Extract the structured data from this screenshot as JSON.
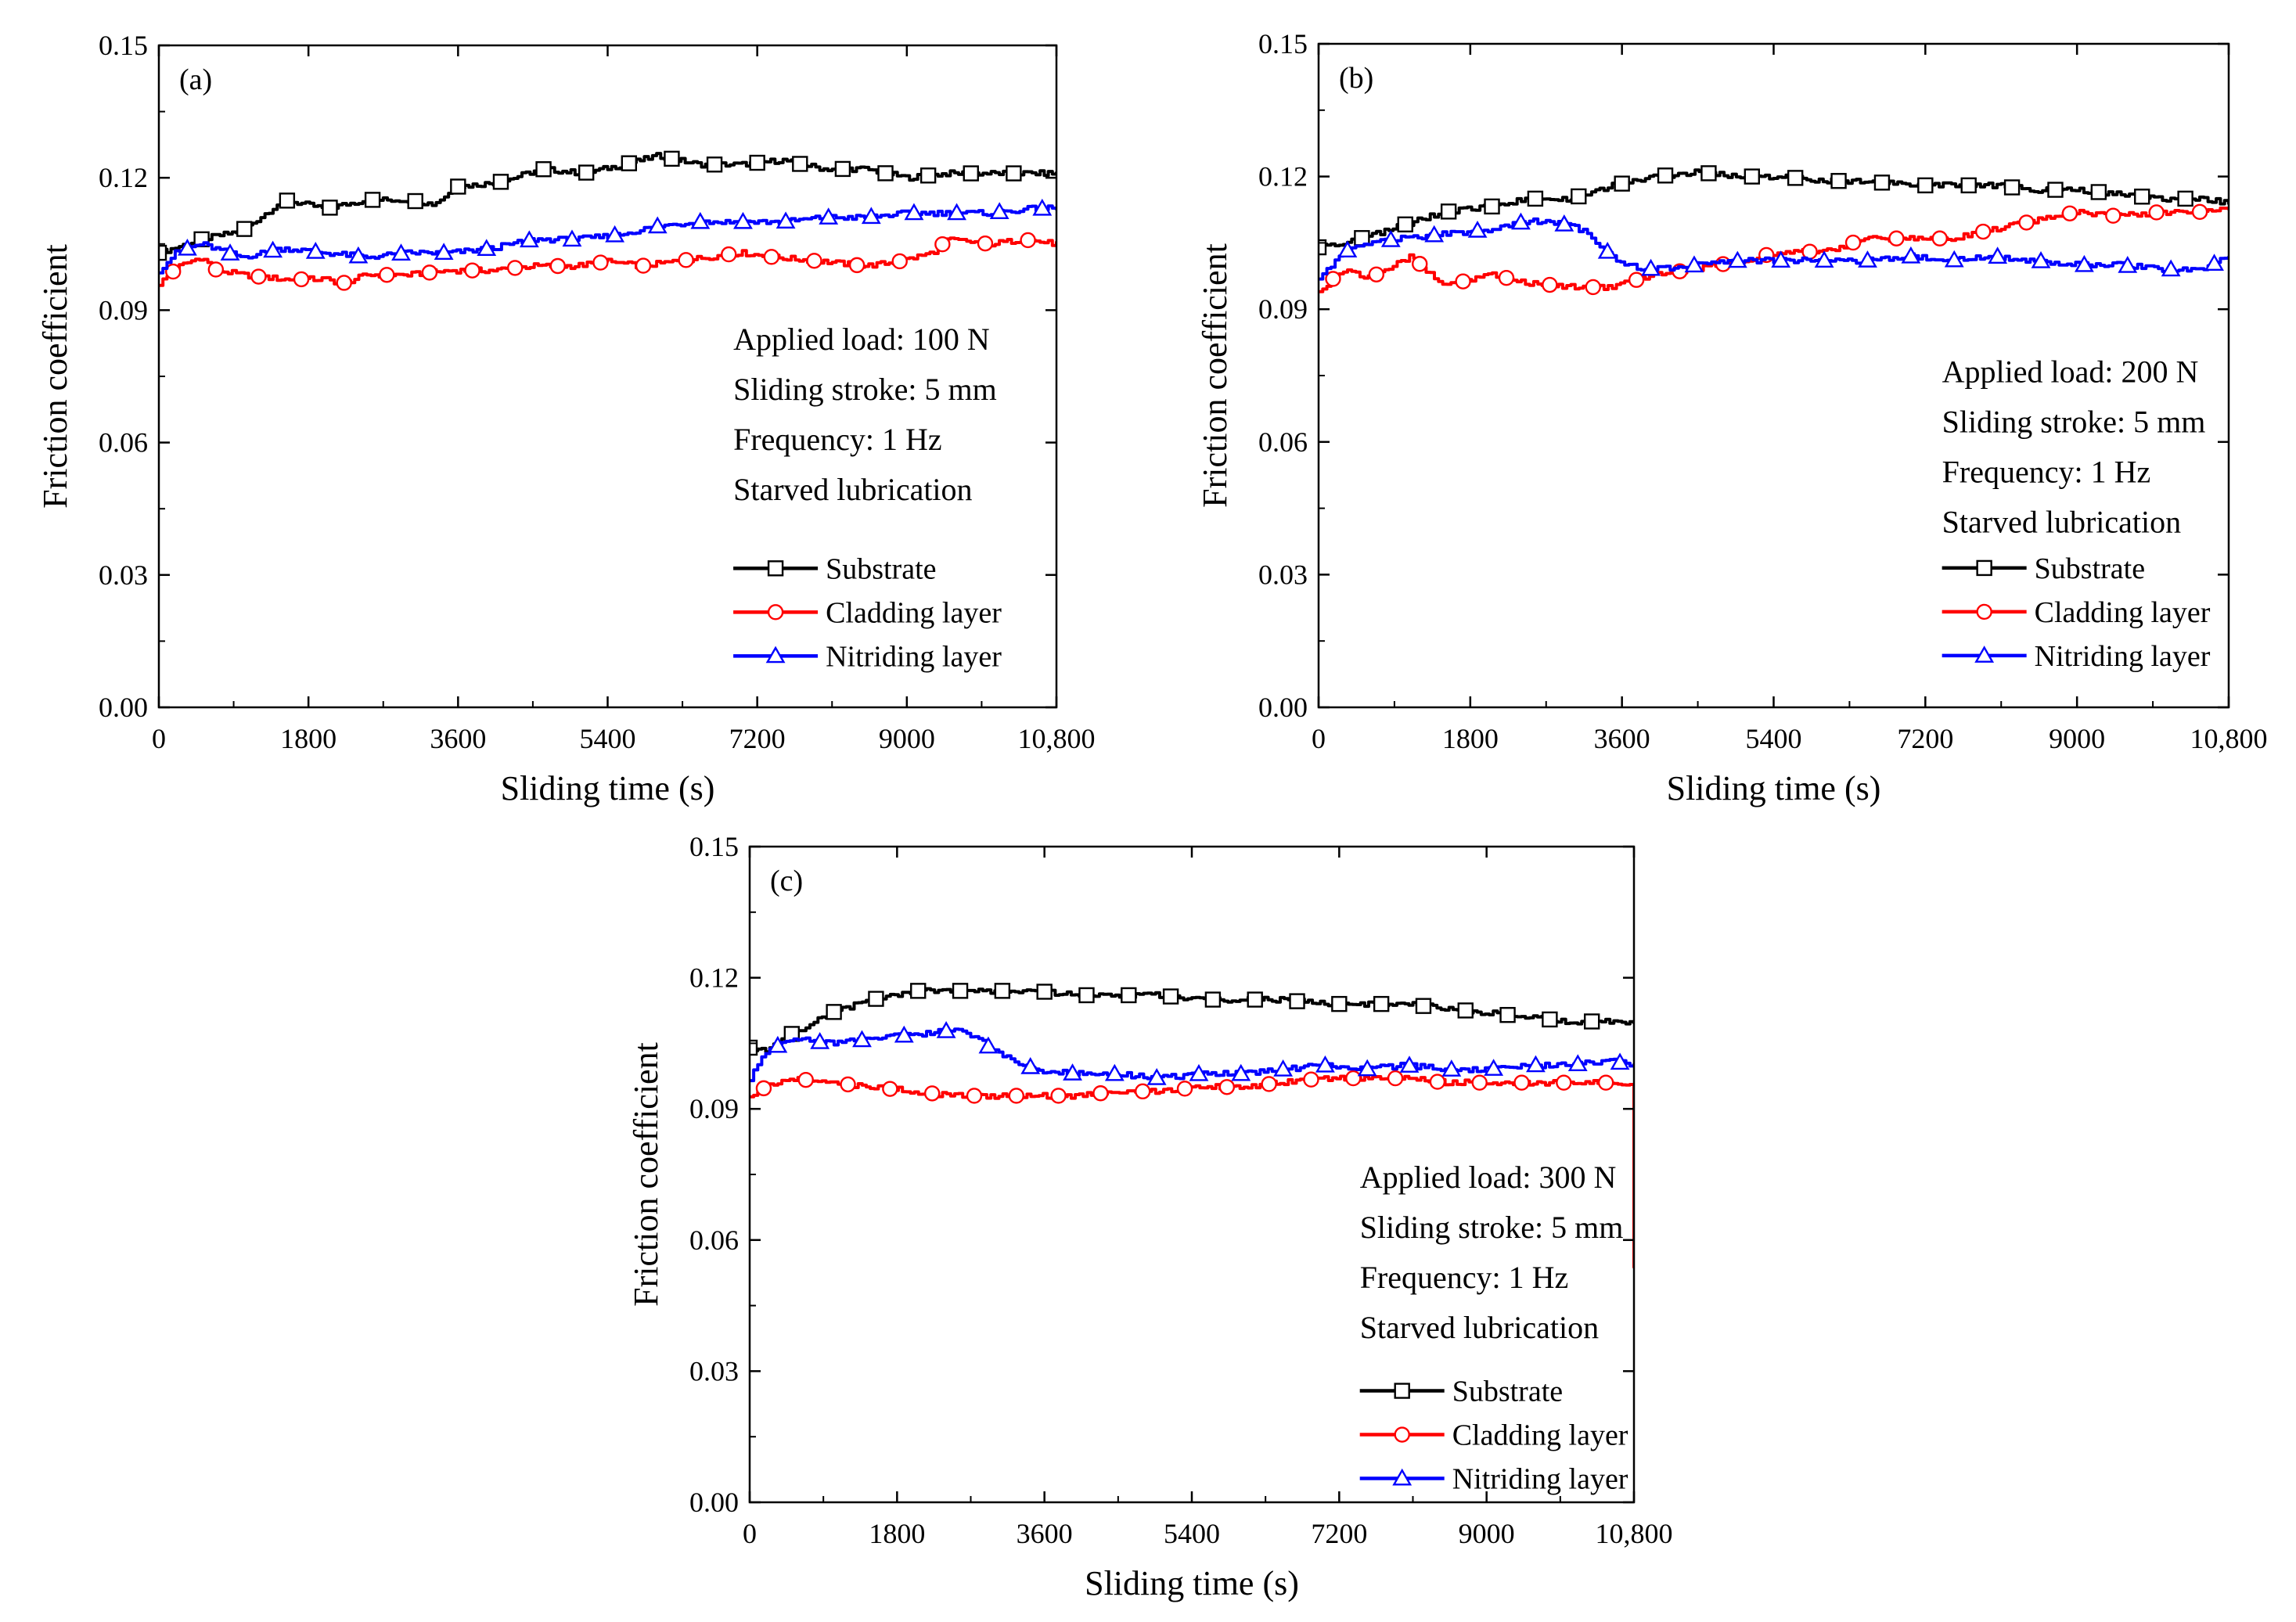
{
  "figure": {
    "colors": {
      "substrate": "#000000",
      "cladding": "#ff0000",
      "nitriding": "#0000ff",
      "axis": "#000000",
      "background": "#ffffff"
    }
  },
  "chart_data": [
    {
      "type": "line",
      "panel": "(a)",
      "xlabel": "Sliding time (s)",
      "ylabel": "Friction coefficient",
      "xlim": [
        0,
        10800
      ],
      "ylim": [
        0,
        0.15
      ],
      "xticks": [
        0,
        1800,
        3600,
        5400,
        7200,
        9000,
        10800
      ],
      "xtick_labels": [
        "0",
        "1800",
        "3600",
        "5400",
        "7200",
        "9000",
        "10,800"
      ],
      "yticks": [
        0,
        0.03,
        0.06,
        0.09,
        0.12,
        0.15
      ],
      "ytick_labels": [
        "0.00",
        "0.03",
        "0.06",
        "0.09",
        "0.12",
        "0.15"
      ],
      "conditions": [
        "Applied load: 100 N",
        "Sliding stroke: 5 mm",
        "Frequency: 1 Hz",
        "Starved lubrication"
      ],
      "legend_position": "lower-right",
      "series": [
        {
          "name": "Substrate",
          "color": "#000000",
          "marker": "square",
          "x": [
            0,
            500,
            1000,
            1500,
            2000,
            2500,
            3000,
            3300,
            3600,
            4100,
            4600,
            5100,
            5600,
            6000,
            6500,
            7000,
            7500,
            8000,
            8500,
            9000,
            9500,
            10000,
            10500,
            10800
          ],
          "y": [
            0.103,
            0.106,
            0.108,
            0.115,
            0.113,
            0.115,
            0.115,
            0.114,
            0.118,
            0.119,
            0.122,
            0.121,
            0.123,
            0.125,
            0.123,
            0.123,
            0.124,
            0.122,
            0.122,
            0.12,
            0.121,
            0.121,
            0.121,
            0.121
          ]
        },
        {
          "name": "Cladding layer",
          "color": "#ff0000",
          "marker": "circle",
          "x": [
            0,
            250,
            500,
            700,
            1000,
            1500,
            2000,
            2200,
            2500,
            3000,
            3500,
            4000,
            4500,
            5000,
            5400,
            5800,
            6200,
            6600,
            7000,
            7400,
            8000,
            8500,
            8900,
            9300,
            9500,
            10000,
            10400,
            10800
          ],
          "y": [
            0.096,
            0.1,
            0.102,
            0.099,
            0.098,
            0.097,
            0.097,
            0.096,
            0.098,
            0.098,
            0.099,
            0.099,
            0.1,
            0.1,
            0.101,
            0.1,
            0.101,
            0.102,
            0.103,
            0.102,
            0.101,
            0.1,
            0.101,
            0.103,
            0.106,
            0.105,
            0.106,
            0.105
          ]
        },
        {
          "name": "Nitriding layer",
          "color": "#0000ff",
          "marker": "triangle",
          "x": [
            0,
            200,
            500,
            1000,
            1500,
            2000,
            2500,
            3000,
            3500,
            4000,
            4500,
            5000,
            5500,
            6000,
            6500,
            7000,
            7500,
            8000,
            8500,
            9000,
            9500,
            10000,
            10500,
            10800
          ],
          "y": [
            0.099,
            0.103,
            0.105,
            0.102,
            0.104,
            0.103,
            0.102,
            0.103,
            0.103,
            0.104,
            0.106,
            0.106,
            0.107,
            0.109,
            0.11,
            0.11,
            0.11,
            0.111,
            0.111,
            0.112,
            0.112,
            0.112,
            0.113,
            0.113
          ]
        }
      ]
    },
    {
      "type": "line",
      "panel": "(b)",
      "xlabel": "Sliding time (s)",
      "ylabel": "Friction coefficient",
      "xlim": [
        0,
        10800
      ],
      "ylim": [
        0,
        0.15
      ],
      "xticks": [
        0,
        1800,
        3600,
        5400,
        7200,
        9000,
        10800
      ],
      "xtick_labels": [
        "0",
        "1800",
        "3600",
        "5400",
        "7200",
        "9000",
        "10,800"
      ],
      "yticks": [
        0,
        0.03,
        0.06,
        0.09,
        0.12,
        0.15
      ],
      "ytick_labels": [
        "0.00",
        "0.03",
        "0.06",
        "0.09",
        "0.12",
        "0.15"
      ],
      "conditions": [
        "Applied load: 200 N",
        "Sliding stroke: 5 mm",
        "Frequency: 1 Hz",
        "Starved lubrication"
      ],
      "legend_position": "lower-right",
      "series": [
        {
          "name": "Substrate",
          "color": "#000000",
          "marker": "square",
          "x": [
            0,
            500,
            1000,
            1500,
            2000,
            2500,
            3000,
            3500,
            4000,
            4500,
            5000,
            5500,
            6000,
            6500,
            7000,
            7500,
            8000,
            8500,
            9000,
            9500,
            10000,
            10500,
            10800
          ],
          "y": [
            0.104,
            0.106,
            0.109,
            0.112,
            0.113,
            0.115,
            0.115,
            0.118,
            0.12,
            0.121,
            0.12,
            0.12,
            0.119,
            0.119,
            0.118,
            0.118,
            0.118,
            0.117,
            0.117,
            0.116,
            0.115,
            0.115,
            0.114
          ]
        },
        {
          "name": "Cladding layer",
          "color": "#ff0000",
          "marker": "circle",
          "x": [
            0,
            300,
            600,
            1000,
            1100,
            1500,
            2000,
            2500,
            3000,
            3500,
            4000,
            4500,
            5000,
            5500,
            6000,
            6500,
            7000,
            7500,
            8000,
            8500,
            9000,
            9500,
            10000,
            10500,
            10800
          ],
          "y": [
            0.094,
            0.099,
            0.097,
            0.101,
            0.102,
            0.095,
            0.098,
            0.096,
            0.095,
            0.095,
            0.098,
            0.099,
            0.101,
            0.103,
            0.103,
            0.106,
            0.106,
            0.106,
            0.108,
            0.11,
            0.112,
            0.111,
            0.112,
            0.112,
            0.113
          ]
        },
        {
          "name": "Nitriding layer",
          "color": "#0000ff",
          "marker": "triangle",
          "x": [
            0,
            300,
            600,
            1000,
            1500,
            2000,
            2500,
            3000,
            3200,
            3600,
            4000,
            4500,
            5000,
            5500,
            6000,
            6500,
            7000,
            7500,
            8000,
            8500,
            9000,
            9500,
            10000,
            10500,
            10800
          ],
          "y": [
            0.097,
            0.103,
            0.105,
            0.106,
            0.107,
            0.108,
            0.11,
            0.109,
            0.107,
            0.1,
            0.099,
            0.1,
            0.101,
            0.101,
            0.101,
            0.101,
            0.102,
            0.101,
            0.102,
            0.101,
            0.1,
            0.1,
            0.099,
            0.099,
            0.102
          ]
        }
      ]
    },
    {
      "type": "line",
      "panel": "(c)",
      "xlabel": "Sliding time (s)",
      "ylabel": "Friction coefficient",
      "xlim": [
        0,
        10800
      ],
      "ylim": [
        0,
        0.15
      ],
      "xticks": [
        0,
        1800,
        3600,
        5400,
        7200,
        9000,
        10800
      ],
      "xtick_labels": [
        "0",
        "1800",
        "3600",
        "5400",
        "7200",
        "9000",
        "10,800"
      ],
      "yticks": [
        0,
        0.03,
        0.06,
        0.09,
        0.12,
        0.15
      ],
      "ytick_labels": [
        "0.00",
        "0.03",
        "0.06",
        "0.09",
        "0.12",
        "0.15"
      ],
      "conditions": [
        "Applied load: 300 N",
        "Sliding stroke: 5 mm",
        "Frequency: 1 Hz",
        "Starved lubrication"
      ],
      "legend_position": "lower-right",
      "series": [
        {
          "name": "Substrate",
          "color": "#000000",
          "marker": "square",
          "x": [
            0,
            200,
            500,
            1000,
            1500,
            2000,
            2500,
            3000,
            3500,
            4000,
            4500,
            5000,
            5500,
            6000,
            6500,
            7000,
            7500,
            8000,
            8500,
            9000,
            9500,
            10000,
            10500,
            10800
          ],
          "y": [
            0.104,
            0.103,
            0.107,
            0.112,
            0.115,
            0.117,
            0.117,
            0.117,
            0.117,
            0.116,
            0.116,
            0.116,
            0.115,
            0.115,
            0.115,
            0.114,
            0.114,
            0.114,
            0.113,
            0.112,
            0.111,
            0.11,
            0.11,
            0.11
          ]
        },
        {
          "name": "Cladding layer",
          "color": "#ff0000",
          "marker": "circle",
          "x": [
            0,
            200,
            500,
            1000,
            1500,
            2000,
            2500,
            3000,
            3500,
            4000,
            4500,
            5000,
            5500,
            6000,
            6500,
            7000,
            7500,
            8000,
            8500,
            9000,
            9500,
            10000,
            10500,
            10790,
            10800
          ],
          "y": [
            0.093,
            0.095,
            0.097,
            0.096,
            0.095,
            0.094,
            0.093,
            0.093,
            0.093,
            0.093,
            0.094,
            0.094,
            0.095,
            0.095,
            0.096,
            0.097,
            0.097,
            0.097,
            0.096,
            0.096,
            0.096,
            0.096,
            0.096,
            0.096,
            0.054
          ]
        },
        {
          "name": "Nitriding layer",
          "color": "#0000ff",
          "marker": "triangle",
          "x": [
            0,
            200,
            500,
            1000,
            1500,
            2000,
            2500,
            2800,
            3000,
            3500,
            4000,
            4500,
            5000,
            5500,
            6000,
            6500,
            7000,
            7500,
            8000,
            8500,
            9000,
            9500,
            10000,
            10500,
            10800
          ],
          "y": [
            0.097,
            0.103,
            0.106,
            0.105,
            0.106,
            0.107,
            0.108,
            0.106,
            0.103,
            0.099,
            0.098,
            0.098,
            0.097,
            0.098,
            0.098,
            0.099,
            0.1,
            0.099,
            0.1,
            0.099,
            0.099,
            0.1,
            0.1,
            0.101,
            0.1
          ]
        }
      ]
    }
  ]
}
